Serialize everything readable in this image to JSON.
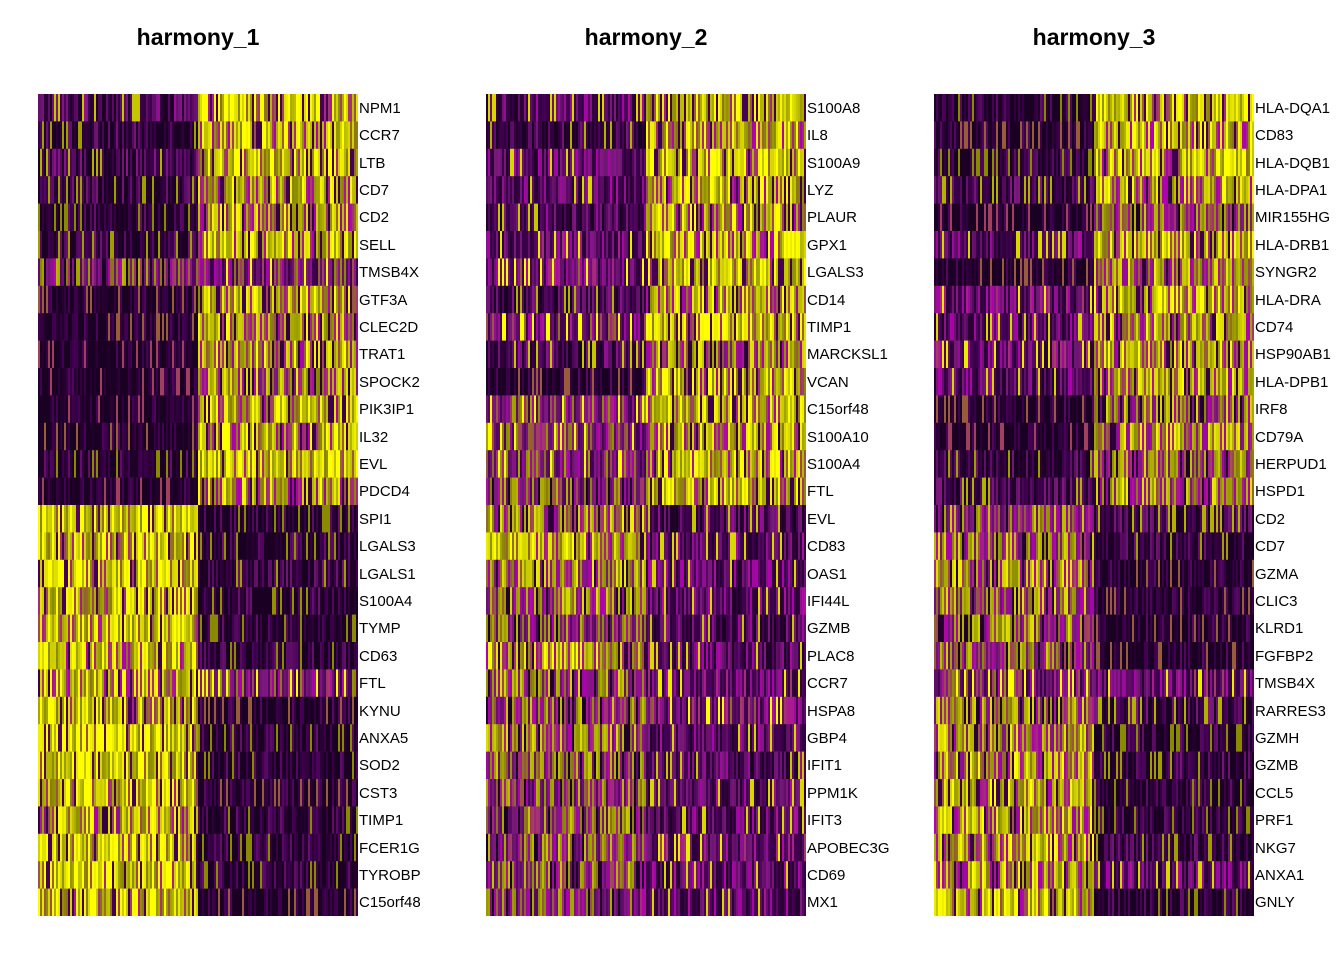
{
  "chart_data": [
    {
      "type": "heatmap",
      "title": "harmony_1",
      "colormap": [
        "#440154",
        "#ffff00"
      ],
      "group_split": 0.5,
      "genes": [
        "NPM1",
        "CCR7",
        "LTB",
        "CD7",
        "CD2",
        "SELL",
        "TMSB4X",
        "GTF3A",
        "CLEC2D",
        "TRAT1",
        "SPOCK2",
        "PIK3IP1",
        "IL32",
        "EVL",
        "PDCD4",
        "SPI1",
        "LGALS3",
        "LGALS1",
        "S100A4",
        "TYMP",
        "CD63",
        "FTL",
        "KYNU",
        "ANXA5",
        "SOD2",
        "CST3",
        "TIMP1",
        "FCER1G",
        "TYROBP",
        "C15orf48"
      ],
      "levels": [
        [
          0.25,
          0.85
        ],
        [
          0.15,
          0.8
        ],
        [
          0.2,
          0.85
        ],
        [
          0.15,
          0.8
        ],
        [
          0.1,
          0.75
        ],
        [
          0.15,
          0.8
        ],
        [
          0.55,
          0.45
        ],
        [
          0.05,
          0.8
        ],
        [
          0.05,
          0.75
        ],
        [
          0.02,
          0.75
        ],
        [
          0.02,
          0.7
        ],
        [
          0.02,
          0.8
        ],
        [
          0.05,
          0.8
        ],
        [
          0.1,
          0.85
        ],
        [
          0.02,
          0.75
        ],
        [
          0.9,
          0.1
        ],
        [
          0.85,
          0.12
        ],
        [
          0.85,
          0.15
        ],
        [
          0.85,
          0.12
        ],
        [
          0.85,
          0.1
        ],
        [
          0.8,
          0.1
        ],
        [
          0.8,
          0.45
        ],
        [
          0.85,
          0.05
        ],
        [
          0.9,
          0.1
        ],
        [
          0.9,
          0.1
        ],
        [
          0.85,
          0.05
        ],
        [
          0.75,
          0.1
        ],
        [
          0.85,
          0.1
        ],
        [
          0.85,
          0.1
        ],
        [
          0.85,
          0.05
        ]
      ]
    },
    {
      "type": "heatmap",
      "title": "harmony_2",
      "colormap": [
        "#440154",
        "#ffff00"
      ],
      "group_split": 0.5,
      "genes": [
        "S100A8",
        "IL8",
        "S100A9",
        "LYZ",
        "PLAUR",
        "GPX1",
        "LGALS3",
        "CD14",
        "TIMP1",
        "MARCKSL1",
        "VCAN",
        "C15orf48",
        "S100A10",
        "S100A4",
        "FTL",
        "EVL",
        "CD83",
        "OAS1",
        "IFI44L",
        "GZMB",
        "PLAC8",
        "CCR7",
        "HSPA8",
        "GBP4",
        "IFIT1",
        "PPM1K",
        "IFIT3",
        "APOBEC3G",
        "CD69",
        "MX1"
      ],
      "levels": [
        [
          0.3,
          0.85
        ],
        [
          0.2,
          0.8
        ],
        [
          0.3,
          0.85
        ],
        [
          0.3,
          0.8
        ],
        [
          0.25,
          0.8
        ],
        [
          0.35,
          0.8
        ],
        [
          0.4,
          0.85
        ],
        [
          0.2,
          0.75
        ],
        [
          0.4,
          0.85
        ],
        [
          0.25,
          0.7
        ],
        [
          0.05,
          0.8
        ],
        [
          0.5,
          0.8
        ],
        [
          0.5,
          0.75
        ],
        [
          0.5,
          0.8
        ],
        [
          0.55,
          0.8
        ],
        [
          0.7,
          0.25
        ],
        [
          0.75,
          0.3
        ],
        [
          0.7,
          0.3
        ],
        [
          0.65,
          0.3
        ],
        [
          0.55,
          0.25
        ],
        [
          0.75,
          0.3
        ],
        [
          0.65,
          0.35
        ],
        [
          0.6,
          0.4
        ],
        [
          0.65,
          0.3
        ],
        [
          0.6,
          0.25
        ],
        [
          0.55,
          0.3
        ],
        [
          0.6,
          0.3
        ],
        [
          0.6,
          0.35
        ],
        [
          0.6,
          0.3
        ],
        [
          0.55,
          0.3
        ]
      ]
    },
    {
      "type": "heatmap",
      "title": "harmony_3",
      "colormap": [
        "#440154",
        "#ffff00"
      ],
      "group_split": 0.5,
      "genes": [
        "HLA-DQA1",
        "CD83",
        "HLA-DQB1",
        "HLA-DPA1",
        "MIR155HG",
        "HLA-DRB1",
        "SYNGR2",
        "HLA-DRA",
        "CD74",
        "HSP90AB1",
        "HLA-DPB1",
        "IRF8",
        "CD79A",
        "HERPUD1",
        "HSPD1",
        "CD2",
        "CD7",
        "GZMA",
        "CLIC3",
        "KLRD1",
        "FGFBP2",
        "TMSB4X",
        "RARRES3",
        "GZMH",
        "GZMB",
        "CCL5",
        "PRF1",
        "NKG7",
        "ANXA1",
        "GNLY"
      ],
      "levels": [
        [
          0.1,
          0.85
        ],
        [
          0.05,
          0.8
        ],
        [
          0.1,
          0.8
        ],
        [
          0.2,
          0.75
        ],
        [
          0.02,
          0.6
        ],
        [
          0.3,
          0.8
        ],
        [
          0.05,
          0.7
        ],
        [
          0.35,
          0.8
        ],
        [
          0.3,
          0.75
        ],
        [
          0.35,
          0.75
        ],
        [
          0.3,
          0.75
        ],
        [
          0.05,
          0.65
        ],
        [
          0.02,
          0.7
        ],
        [
          0.15,
          0.65
        ],
        [
          0.2,
          0.7
        ],
        [
          0.6,
          0.2
        ],
        [
          0.65,
          0.15
        ],
        [
          0.7,
          0.05
        ],
        [
          0.65,
          0.05
        ],
        [
          0.65,
          0.05
        ],
        [
          0.6,
          0.05
        ],
        [
          0.45,
          0.35
        ],
        [
          0.65,
          0.2
        ],
        [
          0.7,
          0.1
        ],
        [
          0.75,
          0.15
        ],
        [
          0.8,
          0.1
        ],
        [
          0.75,
          0.1
        ],
        [
          0.8,
          0.15
        ],
        [
          0.75,
          0.3
        ],
        [
          0.8,
          0.1
        ]
      ]
    }
  ]
}
